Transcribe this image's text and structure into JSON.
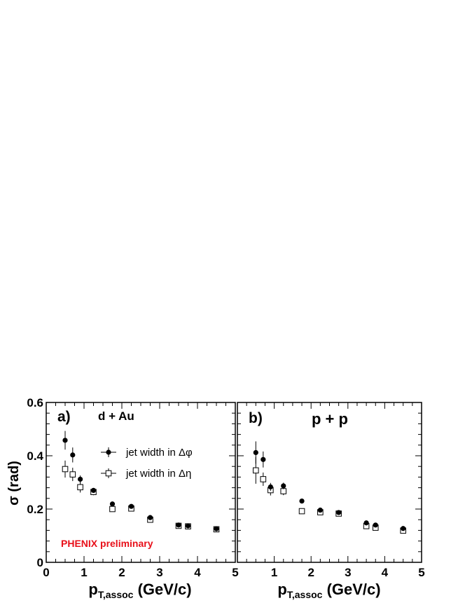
{
  "ylabel": "σ (rad)",
  "colors": {
    "phi": "#000000",
    "eta": "#000000",
    "watermark": "#e8101a"
  },
  "chart_data": [
    {
      "type": "scatter",
      "panel_label": "a)",
      "title": "d + Au",
      "watermark": "PHENIX preliminary",
      "xlabel": "p",
      "xlabel_sub": "T,assoc",
      "xlabel_unit": " (GeV/c)",
      "xlim": [
        0,
        5
      ],
      "ylim": [
        0,
        0.6
      ],
      "xticks": [
        0,
        1,
        2,
        3,
        4,
        5
      ],
      "yticks": [
        0,
        0.2,
        0.4,
        0.6
      ],
      "xtick_labels": [
        "0",
        "1",
        "2",
        "3",
        "4",
        "5"
      ],
      "ytick_labels": [
        "0",
        "0.2",
        "0.4",
        "0.6"
      ],
      "legend_position": "upper-right",
      "series": [
        {
          "name": "jet width in Δφ",
          "marker": "filled-circle",
          "x": [
            0.5,
            0.7,
            0.9,
            1.25,
            1.75,
            2.25,
            2.75,
            3.5,
            3.75,
            4.5
          ],
          "y": [
            0.458,
            0.403,
            0.312,
            0.27,
            0.219,
            0.21,
            0.168,
            0.14,
            0.137,
            0.126
          ],
          "err": [
            0.035,
            0.028,
            0.014,
            0.008,
            0.006,
            0.005,
            0.005,
            0.004,
            0.004,
            0.004
          ]
        },
        {
          "name": "jet width in Δη",
          "marker": "open-square",
          "x": [
            0.5,
            0.7,
            0.9,
            1.25,
            1.75,
            2.25,
            2.75,
            3.5,
            3.75,
            4.5
          ],
          "y": [
            0.35,
            0.33,
            0.282,
            0.264,
            0.2,
            0.202,
            0.16,
            0.137,
            0.135,
            0.124
          ],
          "err": [
            0.032,
            0.025,
            0.02,
            0.012,
            0.01,
            0.008,
            0.008,
            0.006,
            0.006,
            0.006
          ]
        }
      ]
    },
    {
      "type": "scatter",
      "panel_label": "b)",
      "title": "p + p",
      "watermark": "",
      "xlabel": "p",
      "xlabel_sub": "T,assoc",
      "xlabel_unit": " (GeV/c)",
      "xlim": [
        0,
        5
      ],
      "ylim": [
        0,
        0.6
      ],
      "xticks": [
        0,
        1,
        2,
        3,
        4,
        5
      ],
      "yticks": [
        0,
        0.2,
        0.4,
        0.6
      ],
      "xtick_labels": [
        "",
        "1",
        "2",
        "3",
        "4",
        "5"
      ],
      "ytick_labels": [],
      "series": [
        {
          "name": "jet width in Δφ",
          "marker": "filled-circle",
          "x": [
            0.5,
            0.7,
            0.9,
            1.25,
            1.75,
            2.25,
            2.75,
            3.5,
            3.75,
            4.5
          ],
          "y": [
            0.412,
            0.386,
            0.283,
            0.287,
            0.23,
            0.196,
            0.187,
            0.148,
            0.14,
            0.127
          ],
          "err": [
            0.042,
            0.03,
            0.015,
            0.012,
            0.006,
            0.006,
            0.006,
            0.005,
            0.005,
            0.005
          ]
        },
        {
          "name": "jet width in Δη",
          "marker": "open-square",
          "x": [
            0.5,
            0.7,
            0.9,
            1.25,
            1.75,
            2.25,
            2.75,
            3.5,
            3.75,
            4.5
          ],
          "y": [
            0.345,
            0.312,
            0.271,
            0.267,
            0.192,
            0.188,
            0.183,
            0.136,
            0.13,
            0.119
          ],
          "err": [
            0.05,
            0.025,
            0.02,
            0.015,
            0.01,
            0.008,
            0.008,
            0.006,
            0.006,
            0.006
          ]
        }
      ]
    }
  ]
}
